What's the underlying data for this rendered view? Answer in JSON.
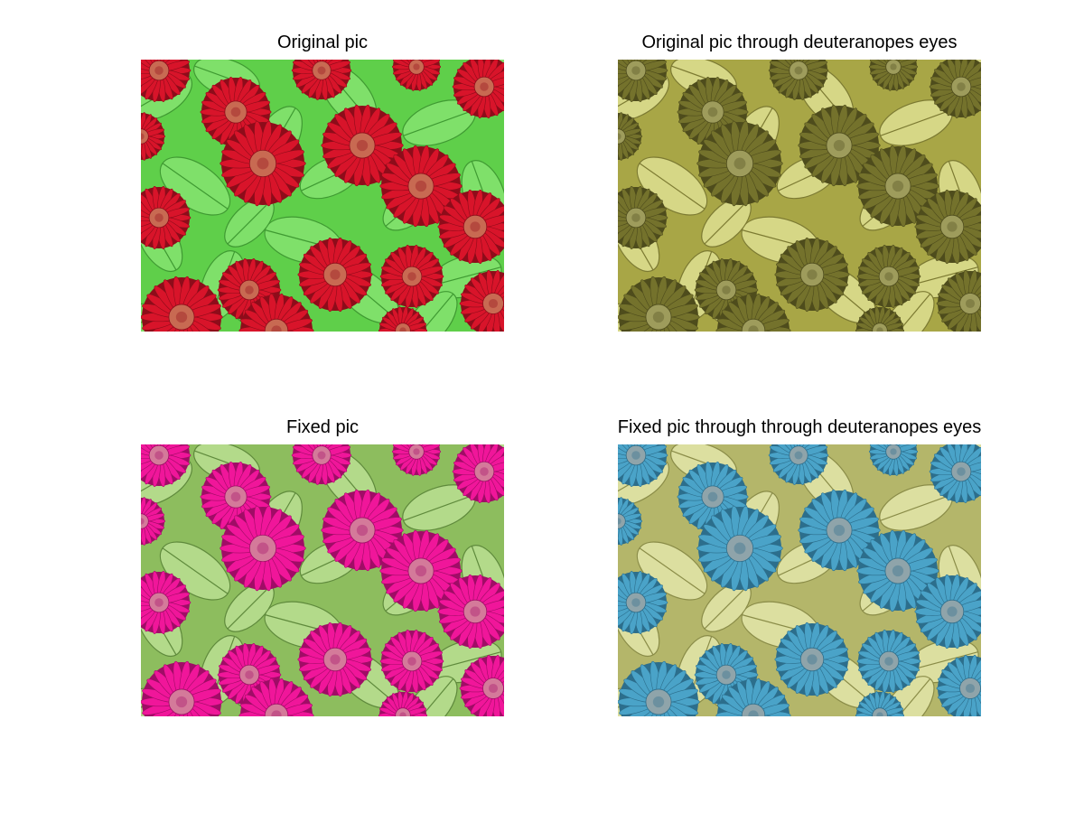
{
  "panels": [
    {
      "title": "Original pic",
      "palette": {
        "background": "#5fcf4a",
        "leaf": "#7fe06a",
        "leaf_vein": "#3f9a32",
        "flower": "#d8142a",
        "flower_dark": "#8e0c1a",
        "center": "#c86a52"
      }
    },
    {
      "title": "Original pic through deuteranopes eyes",
      "palette": {
        "background": "#a8a646",
        "leaf": "#d6d786",
        "leaf_vein": "#7c7a32",
        "flower": "#74722c",
        "flower_dark": "#4e4c1c",
        "center": "#9e9c5c"
      }
    },
    {
      "title": "Fixed pic",
      "palette": {
        "background": "#8dbd5e",
        "leaf": "#b3da8a",
        "leaf_vein": "#5f8a3c",
        "flower": "#f0169a",
        "flower_dark": "#a00c66",
        "center": "#d47a9a"
      }
    },
    {
      "title": "Fixed pic through through deuteranopes eyes",
      "palette": {
        "background": "#b4b66a",
        "leaf": "#dcdfa0",
        "leaf_vein": "#8a8c48",
        "flower": "#4aa3c8",
        "flower_dark": "#2c6e8c",
        "center": "#8fa4aa"
      }
    }
  ]
}
